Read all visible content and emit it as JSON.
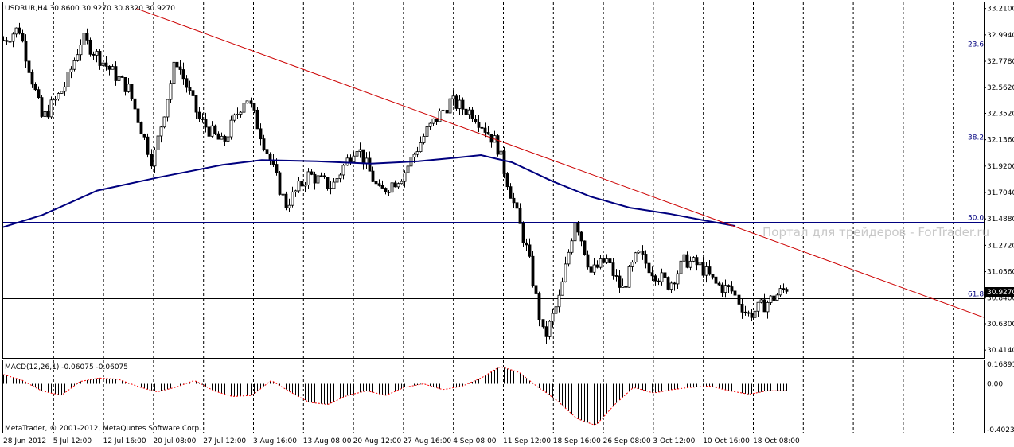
{
  "header": {
    "text": "USDRUR,H4  30.8600 30.9270 30.8320 30.9270"
  },
  "watermark": "Портал для трейдеров - ForTrader.ru",
  "copyright": "MetaTrader, © 2001-2012, MetaQuotes Software Corp.",
  "macd_label": "MACD(12,26,1) -0.06075 -0.06075",
  "current_price": "30.9270",
  "colors": {
    "background": "#ffffff",
    "candle": "#000000",
    "ma": "#00007f",
    "trendline": "#cc0000",
    "fib": "#00007f",
    "macd": "#000000",
    "macd_signal": "#ff0000",
    "grid": "#000000"
  },
  "chart_data": [
    {
      "type": "candlestick",
      "symbol": "USDRUR",
      "timeframe": "H4",
      "ylim": [
        30.35,
        33.26
      ],
      "y_ticks": [
        "33.2100",
        "32.9940",
        "32.7780",
        "32.5620",
        "32.3520",
        "32.1360",
        "31.9200",
        "31.7040",
        "31.4880",
        "31.2720",
        "31.0560",
        "30.8400",
        "30.6300",
        "30.4140"
      ],
      "x_ticks": [
        "28 Jun 2012",
        "5 Jul 12:00",
        "12 Jul 16:00",
        "20 Jul 08:00",
        "27 Jul 12:00",
        "3 Aug 16:00",
        "13 Aug 08:00",
        "20 Aug 12:00",
        "27 Aug 16:00",
        "4 Sep 08:00",
        "11 Sep 12:00",
        "18 Sep 16:00",
        "26 Sep 08:00",
        "3 Oct 12:00",
        "10 Oct 16:00",
        "18 Oct 08:00"
      ],
      "grid": true,
      "close_path": [
        [
          0,
          32.95
        ],
        [
          0.02,
          33.05
        ],
        [
          0.05,
          32.3
        ],
        [
          0.08,
          32.6
        ],
        [
          0.1,
          32.97
        ],
        [
          0.13,
          32.75
        ],
        [
          0.16,
          32.55
        ],
        [
          0.19,
          31.95
        ],
        [
          0.22,
          32.8
        ],
        [
          0.25,
          32.3
        ],
        [
          0.28,
          32.1
        ],
        [
          0.31,
          32.5
        ],
        [
          0.33,
          32.15
        ],
        [
          0.36,
          31.6
        ],
        [
          0.39,
          31.85
        ],
        [
          0.42,
          31.75
        ],
        [
          0.45,
          32.1
        ],
        [
          0.48,
          31.7
        ],
        [
          0.51,
          31.85
        ],
        [
          0.54,
          32.2
        ],
        [
          0.57,
          32.45
        ],
        [
          0.6,
          32.35
        ],
        [
          0.63,
          32.1
        ],
        [
          0.65,
          31.65
        ],
        [
          0.67,
          31.2
        ],
        [
          0.69,
          30.5
        ],
        [
          0.71,
          30.85
        ],
        [
          0.73,
          31.5
        ],
        [
          0.75,
          31.05
        ],
        [
          0.77,
          31.15
        ],
        [
          0.79,
          30.9
        ],
        [
          0.81,
          31.2
        ],
        [
          0.83,
          31.05
        ],
        [
          0.85,
          30.95
        ],
        [
          0.87,
          31.15
        ],
        [
          0.89,
          31.1
        ],
        [
          0.91,
          30.95
        ],
        [
          0.93,
          30.9
        ],
        [
          0.95,
          30.7
        ],
        [
          0.97,
          30.78
        ],
        [
          1.0,
          30.927
        ]
      ],
      "moving_average": [
        [
          0,
          31.42
        ],
        [
          0.05,
          31.52
        ],
        [
          0.12,
          31.72
        ],
        [
          0.2,
          31.83
        ],
        [
          0.28,
          31.93
        ],
        [
          0.33,
          31.97
        ],
        [
          0.4,
          31.96
        ],
        [
          0.47,
          31.94
        ],
        [
          0.53,
          31.96
        ],
        [
          0.58,
          31.99
        ],
        [
          0.61,
          32.01
        ],
        [
          0.65,
          31.95
        ],
        [
          0.7,
          31.8
        ],
        [
          0.75,
          31.67
        ],
        [
          0.8,
          31.58
        ],
        [
          0.85,
          31.53
        ],
        [
          0.9,
          31.47
        ],
        [
          0.935,
          31.43
        ]
      ],
      "trendline": {
        "from": [
          0.17,
          33.21
        ],
        "to": [
          1.21,
          30.78
        ]
      },
      "fibonacci_levels": [
        {
          "label": "23.6",
          "value": 32.88
        },
        {
          "label": "38.2",
          "value": 32.12
        },
        {
          "label": "50.0",
          "value": 31.46
        },
        {
          "label": "61.8",
          "value": 30.84
        }
      ]
    },
    {
      "type": "bar",
      "name": "MACD(12,26,1)",
      "ylim": [
        -0.4023,
        0.1689
      ],
      "y_ticks": [
        "0.16891",
        "0.00",
        "-0.40234"
      ],
      "values": [
        0.08,
        0.03,
        -0.06,
        -0.1,
        0.02,
        0.05,
        0.04,
        -0.02,
        -0.07,
        -0.03,
        0.03,
        -0.06,
        -0.11,
        -0.1,
        0.03,
        -0.07,
        -0.16,
        -0.18,
        -0.1,
        -0.06,
        -0.1,
        -0.03,
        0.0,
        -0.05,
        -0.02,
        0.05,
        0.15,
        0.1,
        -0.03,
        -0.15,
        -0.3,
        -0.36,
        -0.18,
        -0.03,
        -0.08,
        -0.05,
        -0.03,
        -0.02,
        -0.06,
        -0.09,
        -0.06,
        -0.06
      ]
    }
  ]
}
